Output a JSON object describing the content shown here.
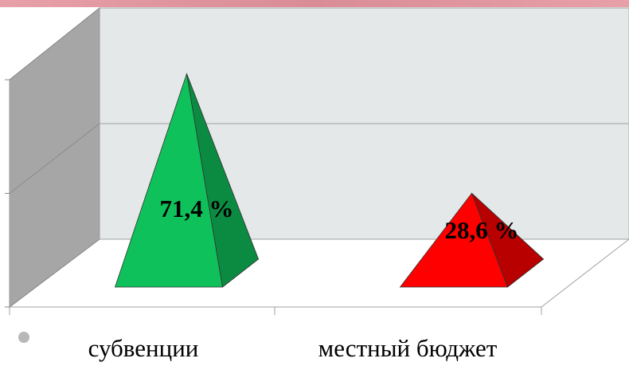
{
  "chart_data": {
    "type": "pyramid3d",
    "categories": [
      "субвенции",
      "местный бюджет"
    ],
    "values": [
      71.4,
      28.6
    ],
    "value_labels": [
      "71,4 %",
      "28,6 %"
    ],
    "colors": [
      "#0fc15a",
      "#ff0000"
    ],
    "ylim": [
      0,
      100
    ],
    "yticks": [
      0,
      50,
      100
    ],
    "grid": true
  }
}
